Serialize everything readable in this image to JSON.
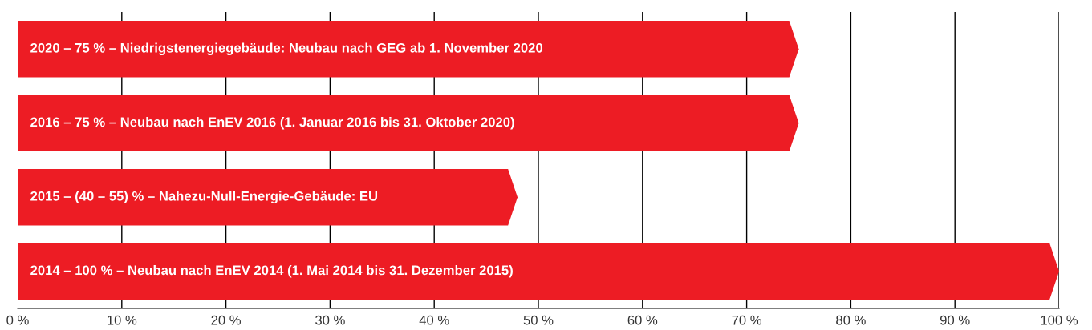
{
  "chart_data": {
    "type": "bar",
    "orientation": "horizontal",
    "categories": [
      "2020 – 75 % – Niedrigstenergiegebäude: Neubau nach GEG ab 1. November 2020",
      "2016 – 75 % – Neubau nach EnEV 2016 (1. Januar 2016 bis 31. Oktober 2020)",
      "2015 – (40 – 55) % – Nahezu-Null-Energie-Gebäude: EU",
      "2014 – 100 % – Neubau nach EnEV 2014 (1. Mai 2014 bis 31. Dezember 2015)"
    ],
    "values": [
      75,
      75,
      48,
      100
    ],
    "color": "#ed1c24",
    "xlim": [
      0,
      100
    ],
    "xticks": [
      {
        "value": 0,
        "label": "0 %"
      },
      {
        "value": 10,
        "label": "10 %"
      },
      {
        "value": 20,
        "label": "20 %"
      },
      {
        "value": 30,
        "label": "30 %"
      },
      {
        "value": 40,
        "label": "40 %"
      },
      {
        "value": 50,
        "label": "50 %"
      },
      {
        "value": 60,
        "label": "60 %"
      },
      {
        "value": 70,
        "label": "70 %"
      },
      {
        "value": 80,
        "label": "80 %"
      },
      {
        "value": 90,
        "label": "90 %"
      },
      {
        "value": 100,
        "label": "100 %"
      }
    ],
    "grid": "x",
    "tick_labels": "x"
  }
}
